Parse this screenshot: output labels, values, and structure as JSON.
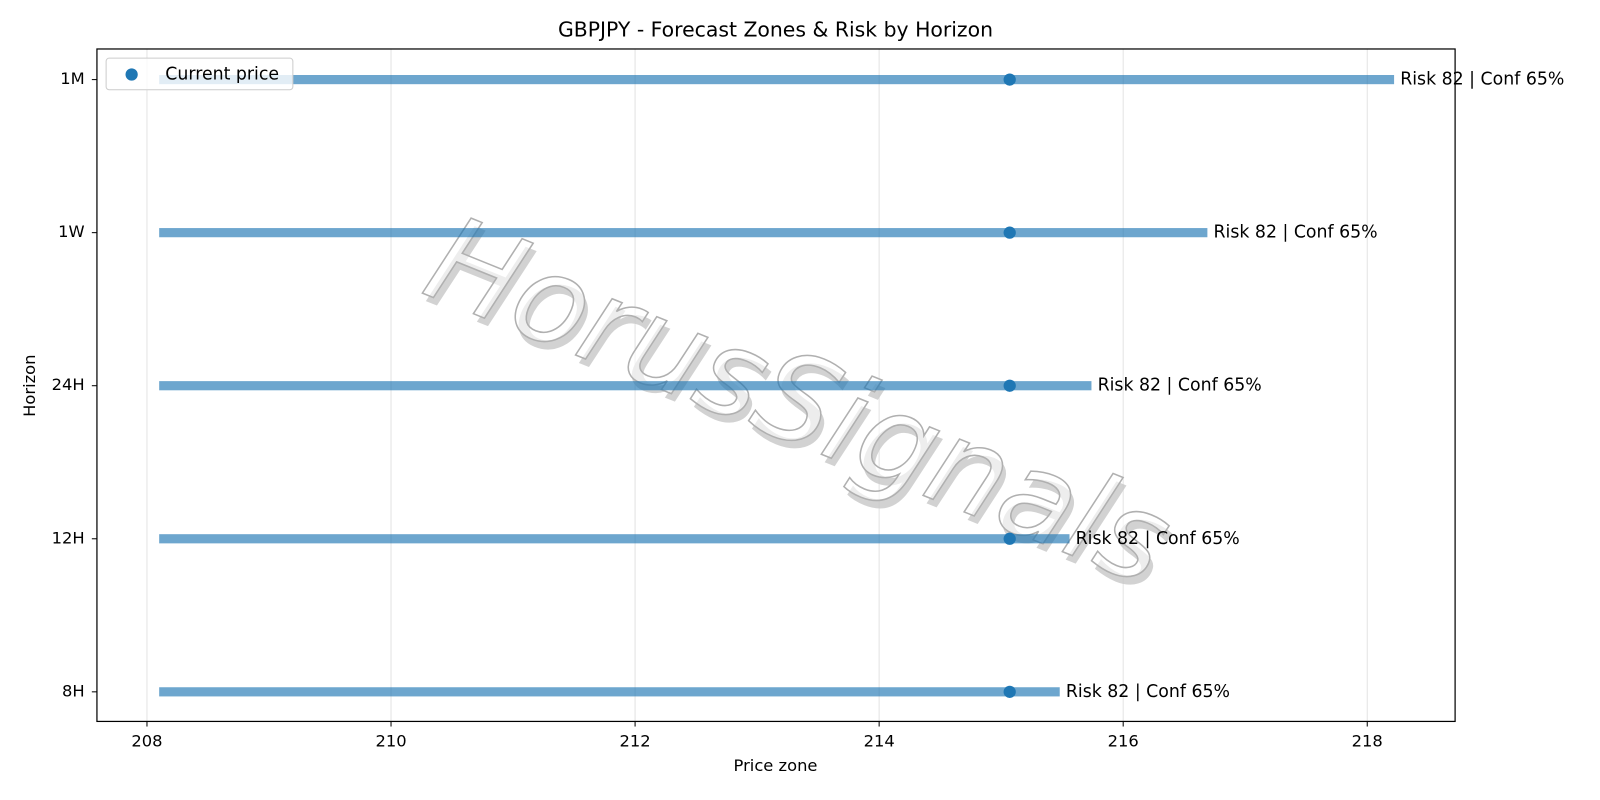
{
  "chart_data": {
    "type": "range",
    "title": "GBPJPY - Forecast Zones & Risk by Horizon",
    "xlabel": "Price zone",
    "ylabel": "Horizon",
    "categories": [
      "8H",
      "12H",
      "24H",
      "1W",
      "1M"
    ],
    "low": [
      208.1,
      208.1,
      208.1,
      208.1,
      208.1
    ],
    "high": [
      215.48,
      215.56,
      215.74,
      216.69,
      218.22
    ],
    "color": "#1f77b4",
    "series": [
      {
        "name": "Current price",
        "color": "#1f77b4",
        "values": [
          215.07,
          215.07,
          215.07,
          215.07,
          215.07
        ]
      }
    ],
    "labels": [
      "Risk 82 | Conf 65%",
      "Risk 82 | Conf 65%",
      "Risk 82 | Conf 65%",
      "Risk 82 | Conf 65%",
      "Risk 82 | Conf 65%"
    ],
    "xlim": [
      207.59,
      218.72
    ],
    "xticks": [
      208,
      210,
      212,
      214,
      216,
      218
    ],
    "grid": true,
    "legend": "upper-left",
    "watermark": "HorusSignals"
  }
}
